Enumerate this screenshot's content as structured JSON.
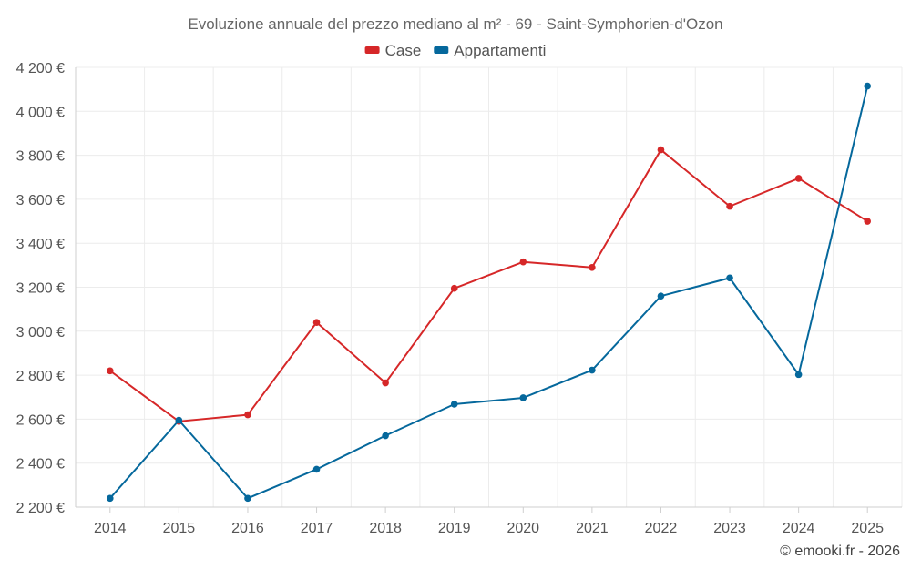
{
  "chart_data": {
    "type": "line",
    "title": "Evoluzione annuale del prezzo mediano al m² - 69 - Saint-Symphorien-d'Ozon",
    "categories": [
      "2014",
      "2015",
      "2016",
      "2017",
      "2018",
      "2019",
      "2020",
      "2021",
      "2022",
      "2023",
      "2024",
      "2025"
    ],
    "series": [
      {
        "name": "Case",
        "color": "#d62728",
        "values": [
          2820,
          2590,
          2620,
          3040,
          2765,
          3195,
          3315,
          3290,
          3825,
          3568,
          3695,
          3500
        ]
      },
      {
        "name": "Appartamenti",
        "color": "#05689c",
        "values": [
          2240,
          2595,
          2240,
          2372,
          2525,
          2668,
          2697,
          2823,
          3160,
          3242,
          2803,
          4115
        ]
      }
    ],
    "ylim": [
      2200,
      4200
    ],
    "y_ticks": [
      "2 200 €",
      "2 400 €",
      "2 600 €",
      "2 800 €",
      "3 000 €",
      "3 200 €",
      "3 400 €",
      "3 600 €",
      "3 800 €",
      "4 000 €",
      "4 200 €"
    ],
    "y_tick_values": [
      2200,
      2400,
      2600,
      2800,
      3000,
      3200,
      3400,
      3600,
      3800,
      4000,
      4200
    ],
    "grid": true,
    "legend_position": "top-center",
    "xlabel": "",
    "ylabel": ""
  },
  "credit": "© emooki.fr - 2026"
}
